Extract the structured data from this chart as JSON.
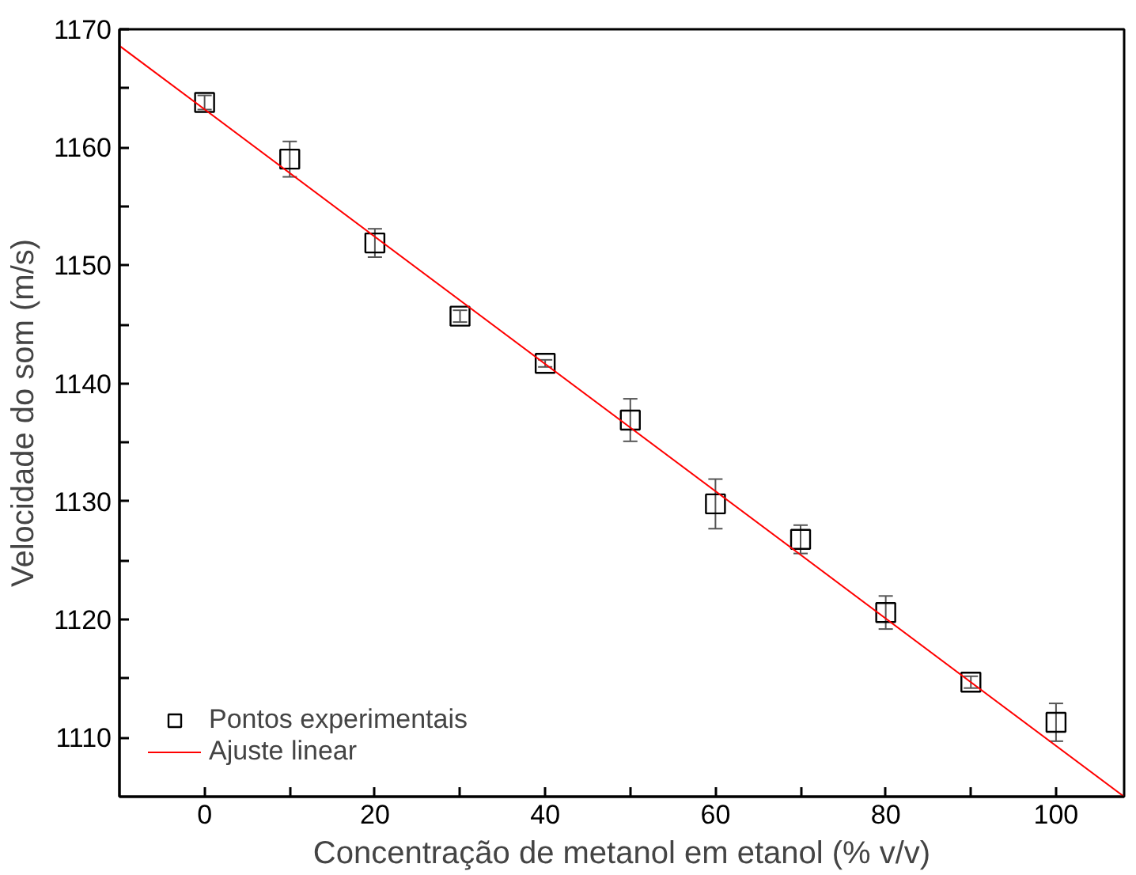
{
  "chart_data": {
    "type": "scatter",
    "xlabel": "Concentração de metanol em etanol (% v/v)",
    "ylabel": "Velocidade do som (m/s)",
    "x": [
      0,
      10,
      20,
      30,
      40,
      50,
      60,
      70,
      80,
      90,
      100
    ],
    "series": [
      {
        "name": "Pontos experimentais",
        "color": "#000000",
        "marker": "square",
        "values": [
          1163.8,
          1159.0,
          1151.9,
          1145.7,
          1141.7,
          1136.9,
          1129.8,
          1126.8,
          1120.6,
          1114.7,
          1111.3
        ],
        "errors": [
          0.6,
          1.5,
          1.2,
          0.5,
          0.3,
          1.8,
          2.1,
          1.2,
          1.4,
          0.5,
          1.6
        ]
      },
      {
        "name": "Ajuste linear",
        "type": "line",
        "color": "#ff0000",
        "line_style": "solid",
        "x": [
          -10,
          108
        ],
        "values": [
          1168.6,
          1105.0
        ]
      }
    ],
    "xlim": [
      -10,
      108
    ],
    "ylim": [
      1105,
      1170
    ],
    "xticks": [
      0,
      {
        "value": 10,
        "label": null
      },
      20,
      {
        "value": 30,
        "label": null
      },
      40,
      {
        "value": 50,
        "label": null
      },
      60,
      {
        "value": 70,
        "label": null
      },
      80,
      {
        "value": 90,
        "label": null
      },
      100
    ],
    "yticks": [
      1110,
      {
        "value": 1115,
        "label": null
      },
      1120,
      {
        "value": 1125,
        "label": null
      },
      1130,
      {
        "value": 1135,
        "label": null
      },
      1140,
      {
        "value": 1145,
        "label": null
      },
      1150,
      {
        "value": 1155,
        "label": null
      },
      1160,
      {
        "value": 1165,
        "label": null
      },
      1170
    ],
    "grid": false,
    "legend": "bottom left"
  }
}
